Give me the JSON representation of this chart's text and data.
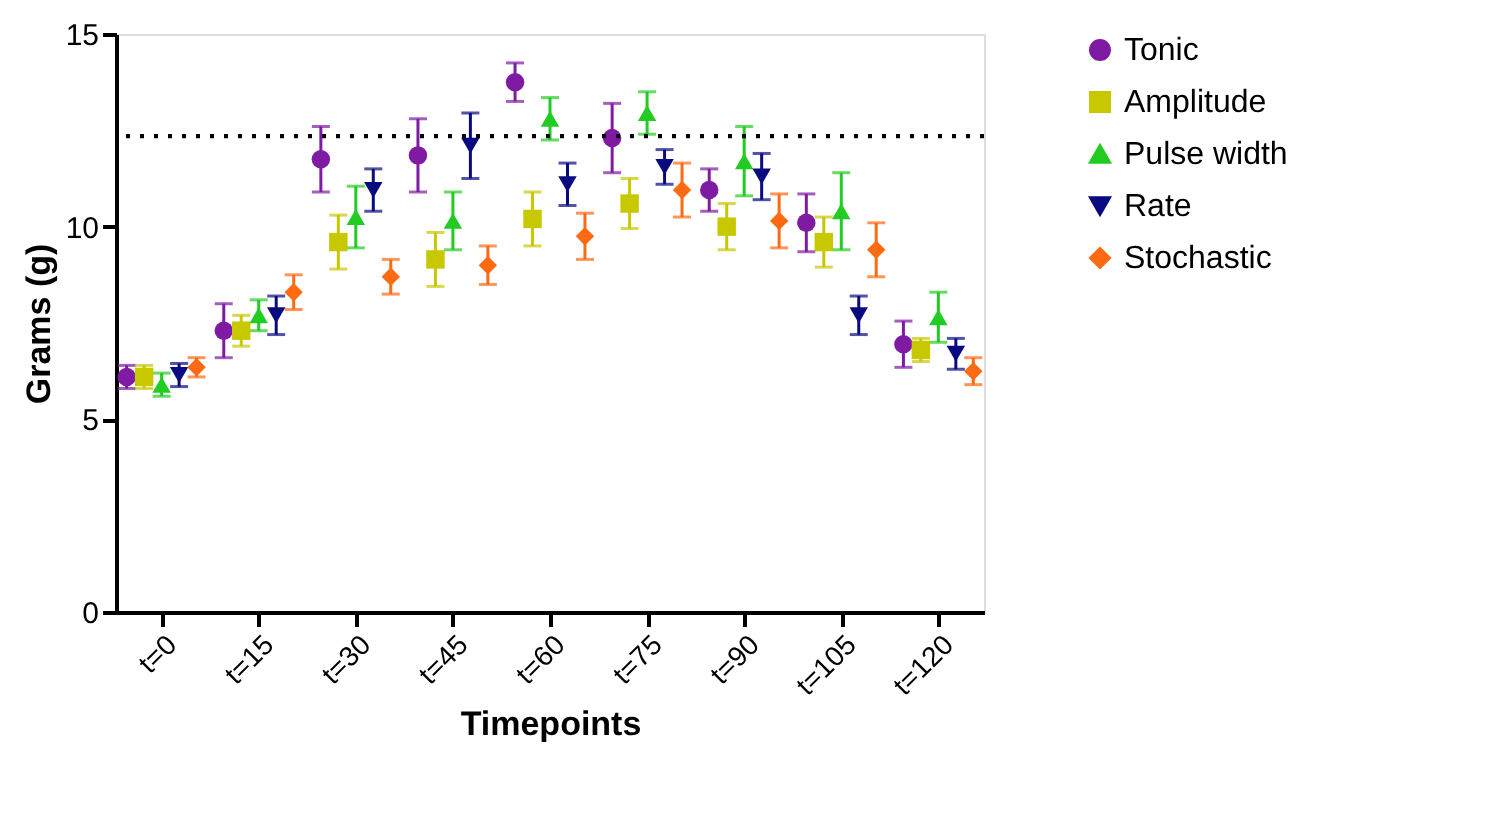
{
  "chart_data": {
    "type": "scatter",
    "xlabel": "Timepoints",
    "ylabel": "Grams (g)",
    "categories": [
      "t=0",
      "t=15",
      "t=30",
      "t=45",
      "t=60",
      "t=75",
      "t=90",
      "t=105",
      "t=120"
    ],
    "series": [
      {
        "name": "Tonic",
        "color": "#7f1aa3",
        "marker": "circle",
        "values": [
          6.1,
          7.3,
          11.75,
          11.85,
          13.75,
          12.3,
          10.95,
          10.1,
          6.95
        ],
        "errors": [
          0.3,
          0.7,
          0.85,
          0.95,
          0.5,
          0.9,
          0.55,
          0.75,
          0.6
        ]
      },
      {
        "name": "Amplitude",
        "color": "#c8c800",
        "marker": "square",
        "values": [
          6.1,
          7.3,
          9.6,
          9.15,
          10.2,
          10.6,
          10.0,
          9.6,
          6.8
        ],
        "errors": [
          0.3,
          0.4,
          0.7,
          0.7,
          0.7,
          0.65,
          0.6,
          0.65,
          0.3
        ]
      },
      {
        "name": "Pulse width",
        "color": "#22cc22",
        "marker": "triangle",
        "values": [
          5.9,
          7.7,
          10.25,
          10.15,
          12.8,
          12.95,
          11.7,
          10.4,
          7.65
        ],
        "errors": [
          0.3,
          0.4,
          0.8,
          0.75,
          0.55,
          0.55,
          0.9,
          1.0,
          0.65
        ]
      },
      {
        "name": "Rate",
        "color": "#0a0a80",
        "marker": "triangle-down",
        "values": [
          6.15,
          7.7,
          10.95,
          12.1,
          11.1,
          11.55,
          11.3,
          7.7,
          6.7
        ],
        "errors": [
          0.3,
          0.5,
          0.55,
          0.85,
          0.55,
          0.45,
          0.6,
          0.5,
          0.4
        ]
      },
      {
        "name": "Stochastic",
        "color": "#ff6a13",
        "marker": "diamond",
        "values": [
          6.35,
          8.3,
          8.7,
          9.0,
          9.75,
          10.95,
          10.15,
          9.4,
          6.25
        ],
        "errors": [
          0.25,
          0.45,
          0.45,
          0.5,
          0.6,
          0.7,
          0.7,
          0.7,
          0.35
        ]
      }
    ],
    "ylim": [
      0,
      15
    ],
    "yticks": [
      0,
      5,
      10,
      15
    ],
    "grid": false,
    "legend": "right",
    "ref_lines": [
      {
        "axis": "y",
        "value": 12.35,
        "line_style": "dotted",
        "color": "#000000"
      }
    ]
  }
}
